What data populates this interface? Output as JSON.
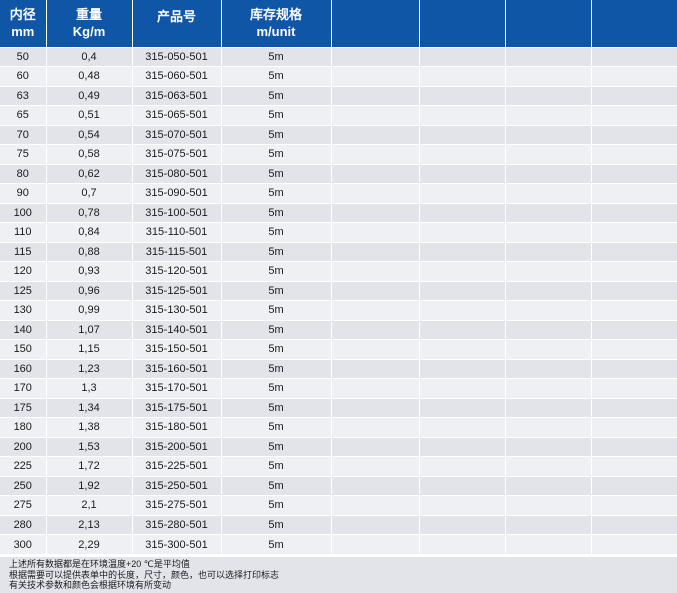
{
  "header": {
    "col1": [
      "内径",
      "mm"
    ],
    "col2": [
      "重量",
      "Kg/m"
    ],
    "col3": [
      "产品号"
    ],
    "col4": [
      "库存规格",
      "m/unit"
    ]
  },
  "rows": [
    [
      "50",
      "0,4",
      "315-050-501",
      "5m"
    ],
    [
      "60",
      "0,48",
      "315-060-501",
      "5m"
    ],
    [
      "63",
      "0,49",
      "315-063-501",
      "5m"
    ],
    [
      "65",
      "0,51",
      "315-065-501",
      "5m"
    ],
    [
      "70",
      "0,54",
      "315-070-501",
      "5m"
    ],
    [
      "75",
      "0,58",
      "315-075-501",
      "5m"
    ],
    [
      "80",
      "0,62",
      "315-080-501",
      "5m"
    ],
    [
      "90",
      "0,7",
      "315-090-501",
      "5m"
    ],
    [
      "100",
      "0,78",
      "315-100-501",
      "5m"
    ],
    [
      "110",
      "0,84",
      "315-110-501",
      "5m"
    ],
    [
      "115",
      "0,88",
      "315-115-501",
      "5m"
    ],
    [
      "120",
      "0,93",
      "315-120-501",
      "5m"
    ],
    [
      "125",
      "0,96",
      "315-125-501",
      "5m"
    ],
    [
      "130",
      "0,99",
      "315-130-501",
      "5m"
    ],
    [
      "140",
      "1,07",
      "315-140-501",
      "5m"
    ],
    [
      "150",
      "1,15",
      "315-150-501",
      "5m"
    ],
    [
      "160",
      "1,23",
      "315-160-501",
      "5m"
    ],
    [
      "170",
      "1,3",
      "315-170-501",
      "5m"
    ],
    [
      "175",
      "1,34",
      "315-175-501",
      "5m"
    ],
    [
      "180",
      "1,38",
      "315-180-501",
      "5m"
    ],
    [
      "200",
      "1,53",
      "315-200-501",
      "5m"
    ],
    [
      "225",
      "1,72",
      "315-225-501",
      "5m"
    ],
    [
      "250",
      "1,92",
      "315-250-501",
      "5m"
    ],
    [
      "275",
      "2,1",
      "315-275-501",
      "5m"
    ],
    [
      "280",
      "2,13",
      "315-280-501",
      "5m"
    ],
    [
      "300",
      "2,29",
      "315-300-501",
      "5m"
    ]
  ],
  "notes": [
    "上述所有数据都是在环境温度+20 ℃是平均值",
    "根据需要可以提供表单中的长度，尺寸，颜色，也可以选择打印标志",
    "有关技术参数和颜色会根据环境有所变动"
  ],
  "colors": {
    "header_bg": "#0f56a6",
    "row_odd": "#e2e4ea",
    "row_even": "#eef0f3"
  }
}
